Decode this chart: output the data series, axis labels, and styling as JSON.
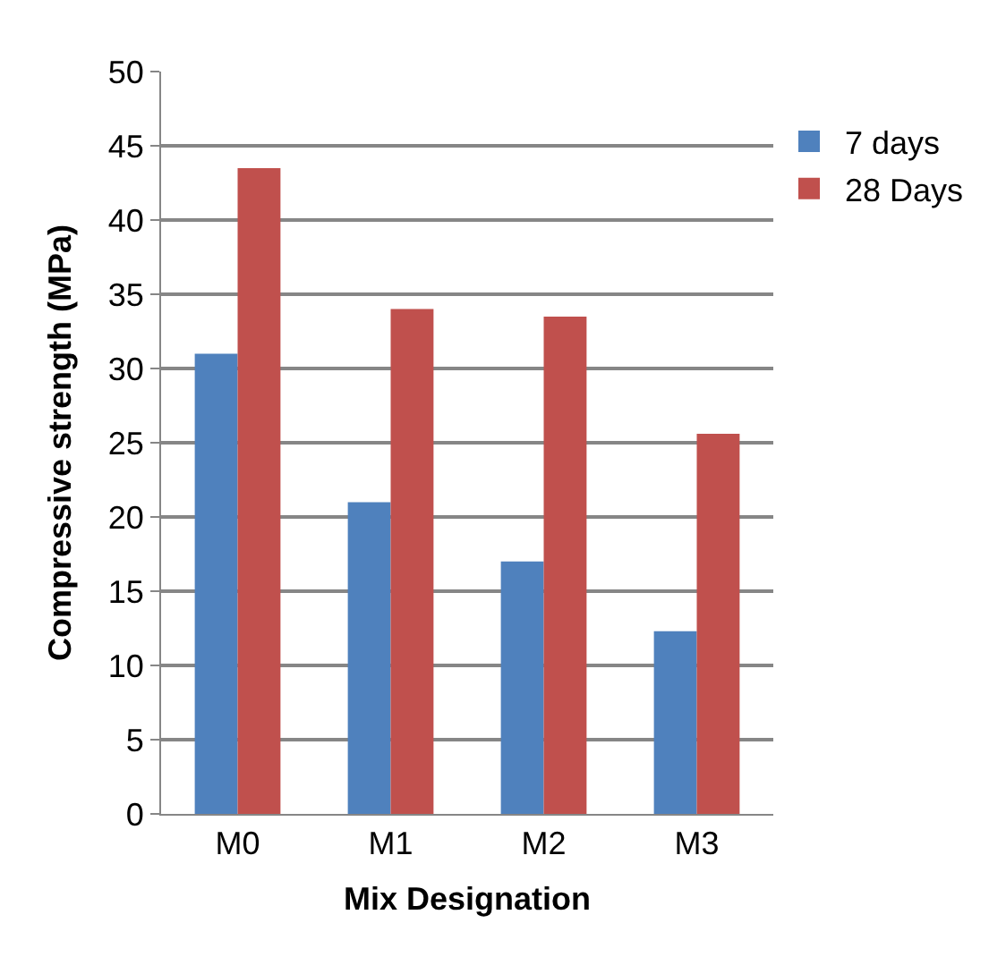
{
  "chart_data": {
    "type": "bar",
    "xlabel": "Mix Designation",
    "ylabel": "Compressive strength (MPa)",
    "categories": [
      "M0",
      "M1",
      "M2",
      "M3"
    ],
    "series": [
      {
        "name": "7 days",
        "color": "#4f81bd",
        "values": [
          31,
          21,
          17,
          12.3
        ]
      },
      {
        "name": "28 Days",
        "color": "#c0504d",
        "values": [
          43.5,
          34,
          33.5,
          25.6
        ]
      }
    ],
    "ylim": [
      0,
      50
    ],
    "yticks": [
      0,
      5,
      10,
      15,
      20,
      25,
      30,
      35,
      40,
      45,
      50
    ],
    "grid": "y",
    "legend": "top right"
  }
}
